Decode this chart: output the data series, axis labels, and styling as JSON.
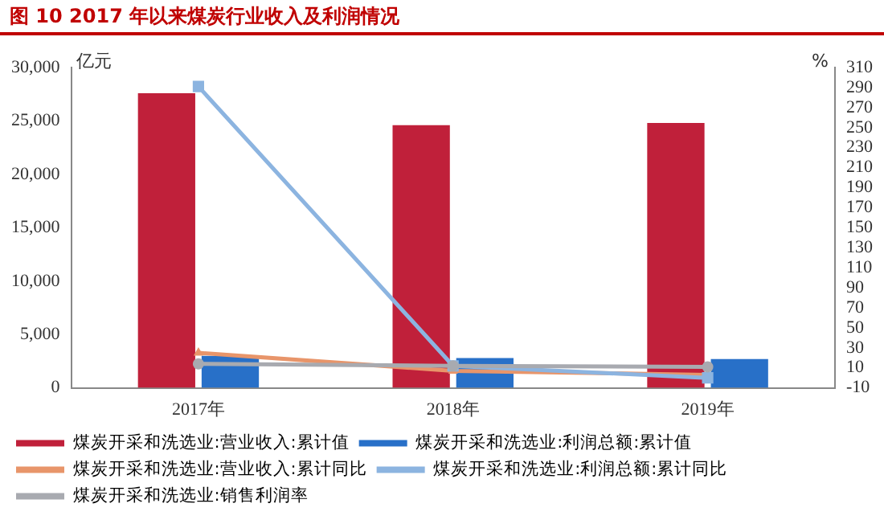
{
  "chart_data": {
    "type": "bar",
    "title": "图 10  2017 年以来煤炭行业收入及利润情况",
    "categories": [
      "2017年",
      "2018年",
      "2019年"
    ],
    "ylabel": "亿元",
    "y2label": "%",
    "ylim": [
      0,
      30000
    ],
    "yticks": [
      0,
      {
        "value": 5000,
        "label": "5,000"
      },
      {
        "value": 10000,
        "label": "10,000"
      },
      {
        "value": 15000,
        "label": "15,000"
      },
      {
        "value": 20000,
        "label": "20,000"
      },
      {
        "value": 25000,
        "label": "25,000"
      },
      {
        "value": 30000,
        "label": "30,000"
      }
    ],
    "y2lim": [
      -10,
      310
    ],
    "y2ticks": [
      -10,
      10,
      30,
      50,
      70,
      90,
      110,
      130,
      150,
      170,
      190,
      210,
      230,
      250,
      270,
      290,
      310
    ],
    "grid": false,
    "legend": "bottom",
    "series": [
      {
        "name": "煤炭开采和洗选业:营业收入:累计值",
        "color": "#c0203a",
        "values": [
          27600,
          24600,
          24800
        ]
      },
      {
        "name": "煤炭开采和洗选业:利润总额:累计值",
        "color": "#2870c8",
        "values": [
          3000,
          2800,
          2700
        ]
      },
      {
        "name": "煤炭开采和洗选业:营业收入:累计同比",
        "type": "line",
        "axis": "y2",
        "marker": "triangle",
        "color": "#e8956a",
        "values": [
          25,
          7,
          3
        ]
      },
      {
        "name": "煤炭开采和洗选业:利润总额:累计同比",
        "type": "line",
        "axis": "y2",
        "marker": "square",
        "color": "#8cb4e0",
        "values": [
          291,
          12,
          0
        ]
      },
      {
        "name": "煤炭开采和洗选业:销售利润率",
        "type": "line",
        "axis": "y2",
        "marker": "circle",
        "color": "#a8aab0",
        "values": [
          14,
          12,
          11
        ]
      }
    ]
  }
}
